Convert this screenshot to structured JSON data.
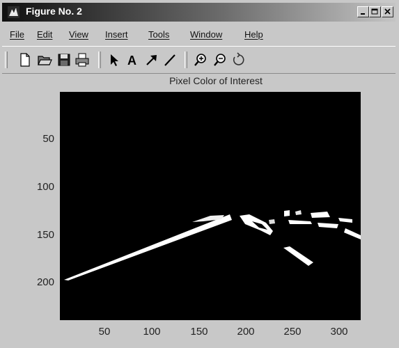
{
  "window": {
    "title": "Figure No. 2",
    "controls": [
      "minimize",
      "maximize",
      "close"
    ]
  },
  "menubar": {
    "items": [
      "File",
      "Edit",
      "View",
      "Insert",
      "Tools",
      "Window",
      "Help"
    ]
  },
  "toolbar": {
    "tools": [
      {
        "name": "new-figure-icon"
      },
      {
        "name": "open-file-icon"
      },
      {
        "name": "save-icon"
      },
      {
        "name": "print-icon"
      },
      {
        "name": "select-arrow-icon"
      },
      {
        "name": "insert-text-icon",
        "glyph": "A"
      },
      {
        "name": "insert-arrow-icon"
      },
      {
        "name": "insert-line-icon"
      },
      {
        "name": "zoom-in-icon"
      },
      {
        "name": "zoom-out-icon"
      },
      {
        "name": "rotate-3d-icon"
      }
    ]
  },
  "figure": {
    "title": "Pixel Color of Interest",
    "y_ticks": [
      "50",
      "100",
      "150",
      "200"
    ],
    "x_ticks": [
      "50",
      "100",
      "150",
      "200",
      "250",
      "300"
    ],
    "axes_background": "#000000",
    "foreground_color": "#ffffff"
  }
}
